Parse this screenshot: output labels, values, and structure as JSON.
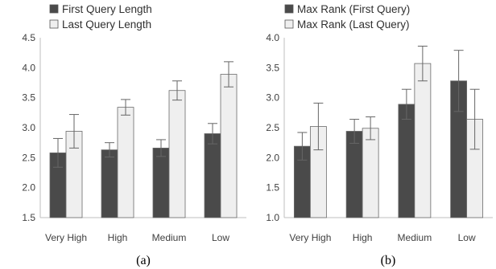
{
  "chart_data": [
    {
      "type": "bar",
      "panel_label": "(a)",
      "categories": [
        "Very High",
        "High",
        "Medium",
        "Low"
      ],
      "ylim": [
        1.5,
        4.5
      ],
      "yticks": [
        "1.5",
        "2.0",
        "2.5",
        "3.0",
        "3.5",
        "4.0",
        "4.5"
      ],
      "grid": false,
      "legend_position": "top",
      "series": [
        {
          "name": "First Query Length",
          "color": "#4a4a4a",
          "values": [
            2.58,
            2.63,
            2.66,
            2.9
          ],
          "errors": [
            0.24,
            0.12,
            0.14,
            0.17
          ]
        },
        {
          "name": "Last Query Length",
          "color": "#efefef",
          "values": [
            2.94,
            3.34,
            3.62,
            3.89
          ],
          "errors": [
            0.28,
            0.13,
            0.16,
            0.21
          ]
        }
      ]
    },
    {
      "type": "bar",
      "panel_label": "(b)",
      "categories": [
        "Very High",
        "High",
        "Medium",
        "Low"
      ],
      "ylim": [
        1.0,
        4.0
      ],
      "yticks": [
        "1.0",
        "1.5",
        "2.0",
        "2.5",
        "3.0",
        "3.5",
        "4.0"
      ],
      "grid": false,
      "legend_position": "top",
      "series": [
        {
          "name": "Max Rank (First Query)",
          "color": "#4a4a4a",
          "values": [
            2.19,
            2.44,
            2.89,
            3.28
          ],
          "errors": [
            0.23,
            0.2,
            0.25,
            0.51
          ]
        },
        {
          "name": "Max Rank (Last Query)",
          "color": "#efefef",
          "values": [
            2.52,
            2.49,
            3.57,
            2.64
          ],
          "errors": [
            0.39,
            0.19,
            0.29,
            0.5
          ]
        }
      ]
    }
  ]
}
